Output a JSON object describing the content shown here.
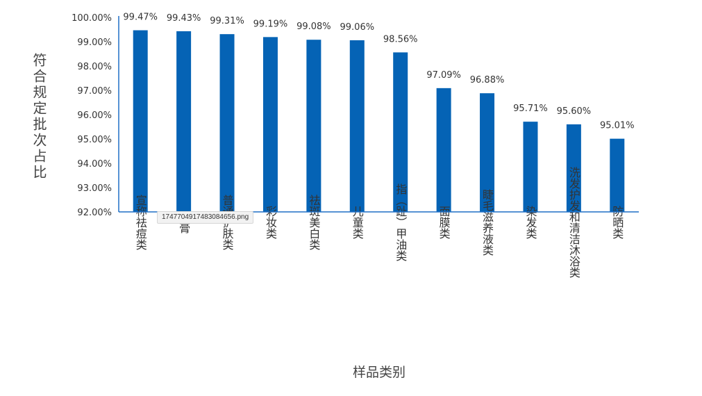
{
  "file_tooltip": "1747704917483084656.png",
  "chart_data": {
    "type": "bar",
    "ylabel": "符合规定批次占比",
    "xlabel": "样品类别",
    "ylim": [
      92,
      100
    ],
    "yticks": [
      "92.00%",
      "93.00%",
      "94.00%",
      "95.00%",
      "96.00%",
      "97.00%",
      "98.00%",
      "99.00%",
      "100.00%"
    ],
    "categories": [
      "宣称祛痘类",
      "牙膏",
      "普通护肤类",
      "彩妆类",
      "祛斑美白类",
      "儿童类",
      "指（趾）甲油类",
      "面膜类",
      "睫毛滋养液类",
      "染发类",
      "洗发护发和清洁沐浴类",
      "防晒类"
    ],
    "values": [
      99.47,
      99.43,
      99.31,
      99.19,
      99.08,
      99.06,
      98.56,
      97.09,
      96.88,
      95.71,
      95.6,
      95.01
    ],
    "value_labels": [
      "99.47%",
      "99.43%",
      "99.31%",
      "99.19%",
      "99.08%",
      "99.06%",
      "98.56%",
      "97.09%",
      "96.88%",
      "95.71%",
      "95.60%",
      "95.01%"
    ],
    "bar_color": "#0563b5",
    "axis_color": "#1f6fc5",
    "grid": false,
    "legend": "none"
  }
}
